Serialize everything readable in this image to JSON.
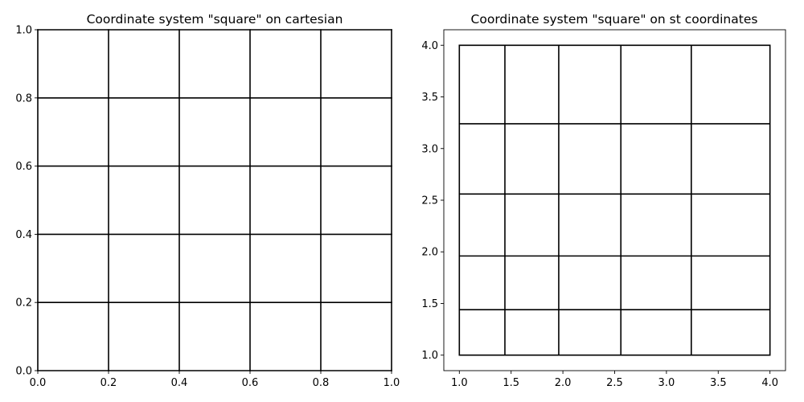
{
  "chart_data": [
    {
      "type": "line",
      "title": "Coordinate system \"square\" on cartesian",
      "xlabel": "",
      "ylabel": "",
      "xlim": [
        0.0,
        1.0
      ],
      "ylim": [
        0.0,
        1.0
      ],
      "xticks": [
        0.0,
        0.2,
        0.4,
        0.6,
        0.8,
        1.0
      ],
      "yticks": [
        0.0,
        0.2,
        0.4,
        0.6,
        0.8,
        1.0
      ],
      "xtick_labels": [
        "0.0",
        "0.2",
        "0.4",
        "0.6",
        "0.8",
        "1.0"
      ],
      "ytick_labels": [
        "0.0",
        "0.2",
        "0.4",
        "0.6",
        "0.8",
        "1.0"
      ],
      "grid_x": [
        0.0,
        0.2,
        0.4,
        0.6,
        0.8,
        1.0
      ],
      "grid_y": [
        0.0,
        0.2,
        0.4,
        0.6,
        0.8,
        1.0
      ],
      "line_color": "#000000",
      "grid": false,
      "legend": "none"
    },
    {
      "type": "line",
      "title": "Coordinate system \"square\" on st coordinates",
      "xlabel": "",
      "ylabel": "",
      "xlim": [
        0.85,
        4.15
      ],
      "ylim": [
        0.85,
        4.15
      ],
      "xticks": [
        1.0,
        1.5,
        2.0,
        2.5,
        3.0,
        3.5,
        4.0
      ],
      "yticks": [
        1.0,
        1.5,
        2.0,
        2.5,
        3.0,
        3.5,
        4.0
      ],
      "xtick_labels": [
        "1.0",
        "1.5",
        "2.0",
        "2.5",
        "3.0",
        "3.5",
        "4.0"
      ],
      "ytick_labels": [
        "1.0",
        "1.5",
        "2.0",
        "2.5",
        "3.0",
        "3.5",
        "4.0"
      ],
      "grid_x": [
        1.0,
        1.44,
        1.96,
        2.56,
        3.24,
        4.0
      ],
      "grid_y": [
        1.0,
        1.44,
        1.96,
        2.56,
        3.24,
        4.0
      ],
      "line_color": "#000000",
      "grid": false,
      "legend": "none"
    }
  ]
}
